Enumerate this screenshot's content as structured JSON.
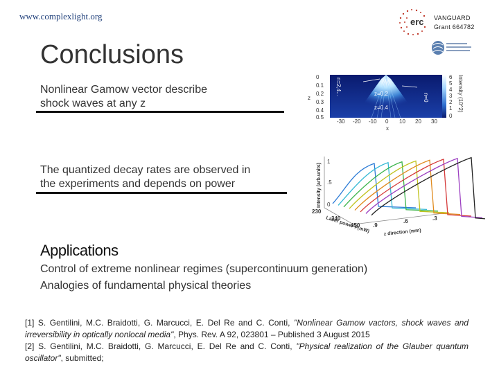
{
  "header": {
    "url": "www.complexlight.org",
    "grant_line1": "VANGUARD",
    "grant_line2": "Grant 664782",
    "erc_logo_text": "erc",
    "foundation_logo": "foundation-logo"
  },
  "title": "Conclusions",
  "points": [
    {
      "line1": "Nonlinear Gamow vector describe",
      "line2": "shock waves at any z"
    },
    {
      "line1": "The quantized decay rates are observed in",
      "line2": "the experiments and depends on power"
    }
  ],
  "figure1": {
    "z_ticks": [
      "0",
      "0.1",
      "0.2",
      "0.3",
      "0.4",
      "0.5"
    ],
    "x_ticks": [
      "-30",
      "-20",
      "-10",
      "0",
      "10",
      "20",
      "30"
    ],
    "x_label": "x",
    "z_label": "z",
    "n_label": "n=2,4...",
    "n0_label": "n=0",
    "z02_label": "z=0.2",
    "z04_label": "z=0.4",
    "intensity_ticks": [
      "6",
      "5",
      "4",
      "3",
      "2",
      "1",
      "0"
    ],
    "intensity_label": "Intensity (10^2)"
  },
  "figure2": {
    "y_label": "Intensity (arb.units)",
    "y_ticks": [
      "1",
      ".5",
      "0"
    ],
    "power_ticks": [
      "230",
      "340",
      "450"
    ],
    "power_label": "Laser power P(mW)",
    "z_ticks": [
      ".9",
      ".6",
      ".3"
    ],
    "z_label": "z direction (mm)",
    "curve_colors": [
      "#2b7bd6",
      "#35b9d4",
      "#3cb44b",
      "#c0c31e",
      "#e08a1e",
      "#d53a3a",
      "#9c3fc1",
      "#222222"
    ]
  },
  "applications": {
    "heading": "Applications",
    "line1": "Control of extreme nonlinear regimes (supercontinuum generation)",
    "line2": "Analogies of fundamental physical theories"
  },
  "references": {
    "r1_authors": "[1] S. Gentilini, M.C. Braidotti, G. Marcucci, E. Del Re and C. Conti, ",
    "r1_title": "\"Nonlinear Gamow vactors, shock waves and irreversibility in optically nonlocal media\"",
    "r1_journal": ", Phys. Rev. A 92, 023801 – Published 3 August 2015",
    "r2_authors": "[2] S. Gentilini, M.C. Braidotti, G. Marcucci, E. Del Re and C. Conti, ",
    "r2_title": "\"Physical realization of the Glauber quantum oscillator\"",
    "r2_journal": ", submitted;"
  }
}
